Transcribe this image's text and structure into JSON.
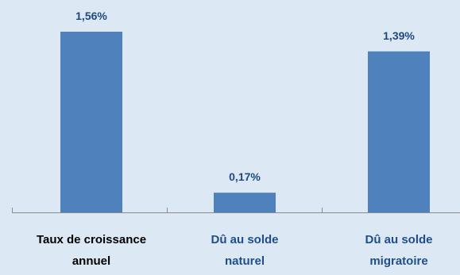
{
  "colors": {
    "background": "#dce9f4",
    "bar": "#4f81bd",
    "value_label": "#1f497d",
    "axis": "#8c8c8c",
    "category_label_primary": "#000000",
    "category_label_secondary": "#1f4e8c"
  },
  "chart_data": {
    "type": "bar",
    "title": "",
    "xlabel": "",
    "ylabel": "",
    "categories": [
      [
        "Taux de croissance",
        "annuel"
      ],
      [
        "Dû au solde",
        "naturel"
      ],
      [
        "Dû au solde",
        "migratoire"
      ]
    ],
    "values": [
      1.56,
      0.17,
      1.39
    ],
    "value_labels": [
      "1,56%",
      "0,17%",
      "1,39%"
    ],
    "unit": "%",
    "ylim": [
      0,
      1.56
    ],
    "grid": false,
    "legend": "none"
  }
}
